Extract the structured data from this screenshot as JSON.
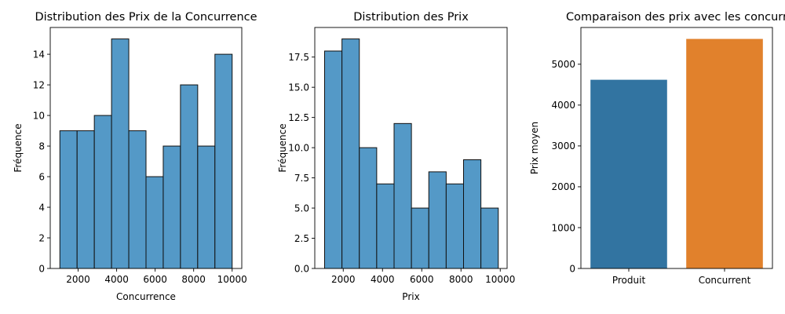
{
  "chart_data": [
    {
      "type": "bar",
      "subtype": "histogram",
      "title": "Distribution des Prix de la Concurrence",
      "xlabel": "Concurrence",
      "ylabel": "Fréquence",
      "bin_edges": [
        1050,
        1945,
        2840,
        3735,
        4630,
        5525,
        6420,
        7315,
        8210,
        9105,
        10000
      ],
      "values": [
        9,
        9,
        10,
        15,
        9,
        6,
        8,
        12,
        8,
        14
      ],
      "xlim": [
        550,
        10500
      ],
      "ylim": [
        0,
        15.75
      ],
      "xticks": [
        2000,
        4000,
        6000,
        8000,
        10000
      ],
      "yticks": [
        0,
        2,
        4,
        6,
        8,
        10,
        12,
        14
      ],
      "color": "#5499c7",
      "edgecolor": "#111111",
      "grid": false
    },
    {
      "type": "bar",
      "subtype": "histogram",
      "title": "Distribution des Prix",
      "xlabel": "Prix",
      "ylabel": "Fréquence",
      "bin_edges": [
        1050,
        1935,
        2820,
        3705,
        4590,
        5475,
        6360,
        7245,
        8130,
        9015,
        9900
      ],
      "values": [
        18,
        19,
        10,
        7,
        12,
        5,
        8,
        7,
        9,
        5
      ],
      "xlim": [
        550,
        10350
      ],
      "ylim": [
        0,
        19.95
      ],
      "xticks": [
        2000,
        4000,
        6000,
        8000,
        10000
      ],
      "yticks": [
        0.0,
        2.5,
        5.0,
        7.5,
        10.0,
        12.5,
        15.0,
        17.5
      ],
      "color": "#5499c7",
      "edgecolor": "#111111",
      "grid": false
    },
    {
      "type": "bar",
      "title": "Comparaison des prix avec les concurr",
      "xlabel": "",
      "ylabel": "Prix moyen",
      "categories": [
        "Produit",
        "Concurrent"
      ],
      "values": [
        4620,
        5620
      ],
      "colors": [
        "#3274a1",
        "#e1812c"
      ],
      "ylim": [
        0,
        5900
      ],
      "yticks": [
        0,
        1000,
        2000,
        3000,
        4000,
        5000
      ],
      "grid": false
    }
  ]
}
